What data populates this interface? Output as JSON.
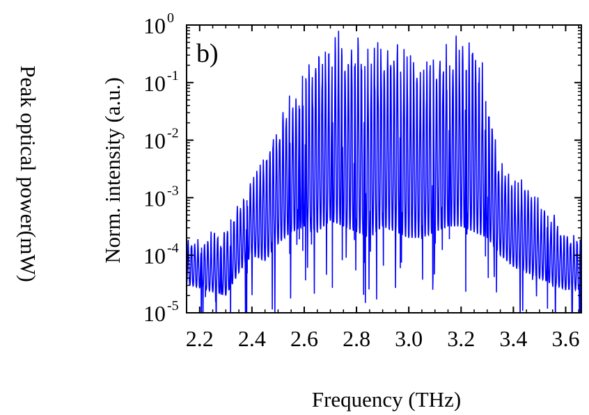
{
  "figure": {
    "outer_ylabel": "Peak optical power(mW)",
    "panel_label": "b)"
  },
  "chart_data": {
    "type": "line",
    "xlabel": "Frequency (THz)",
    "ylabel": "Norm. intensity (a.u.)",
    "xlim": [
      2.15,
      3.66
    ],
    "ylim_log10": [
      -5,
      0
    ],
    "yscale": "log",
    "xticks": [
      2.2,
      2.4,
      2.6,
      2.8,
      3.0,
      3.2,
      3.4,
      3.6
    ],
    "xtick_labels": [
      "2.2",
      "2.4",
      "2.6",
      "2.8",
      "3.0",
      "3.2",
      "3.4",
      "3.6"
    ],
    "ytick_exponents": [
      0,
      -1,
      -2,
      -3,
      -4,
      -5
    ],
    "ytick_base": "10",
    "grid": false,
    "series": [
      {
        "color": "#0000ff",
        "envelope_description_points": {
          "x": [
            2.15,
            2.3,
            2.35,
            2.4,
            2.45,
            2.5,
            2.55,
            2.6,
            2.65,
            2.7,
            2.75,
            2.8,
            2.85,
            2.9,
            2.95,
            3.0,
            3.05,
            3.1,
            3.15,
            3.2,
            3.25,
            3.3,
            3.35,
            3.4,
            3.45,
            3.5,
            3.55,
            3.6,
            3.66
          ],
          "peak_log10": [
            -3.7,
            -3.5,
            -3.0,
            -2.6,
            -2.0,
            -1.5,
            -1.0,
            -0.65,
            -0.3,
            -0.2,
            0.0,
            -0.1,
            -0.2,
            -0.1,
            0.0,
            -0.4,
            -0.35,
            -0.3,
            -0.2,
            0.0,
            0.0,
            -1.0,
            -2.2,
            -2.7,
            -2.6,
            -3.0,
            -3.2,
            -3.5,
            -3.6
          ],
          "floor_log10": [
            -4.5,
            -4.7,
            -4.3,
            -4.0,
            -4.1,
            -3.8,
            -3.6,
            -3.5,
            -3.6,
            -3.4,
            -3.5,
            -3.6,
            -3.7,
            -3.5,
            -3.6,
            -3.7,
            -3.7,
            -3.6,
            -3.5,
            -3.5,
            -3.6,
            -3.7,
            -4.0,
            -4.2,
            -4.3,
            -4.4,
            -4.5,
            -4.6,
            -4.6
          ]
        }
      }
    ]
  }
}
